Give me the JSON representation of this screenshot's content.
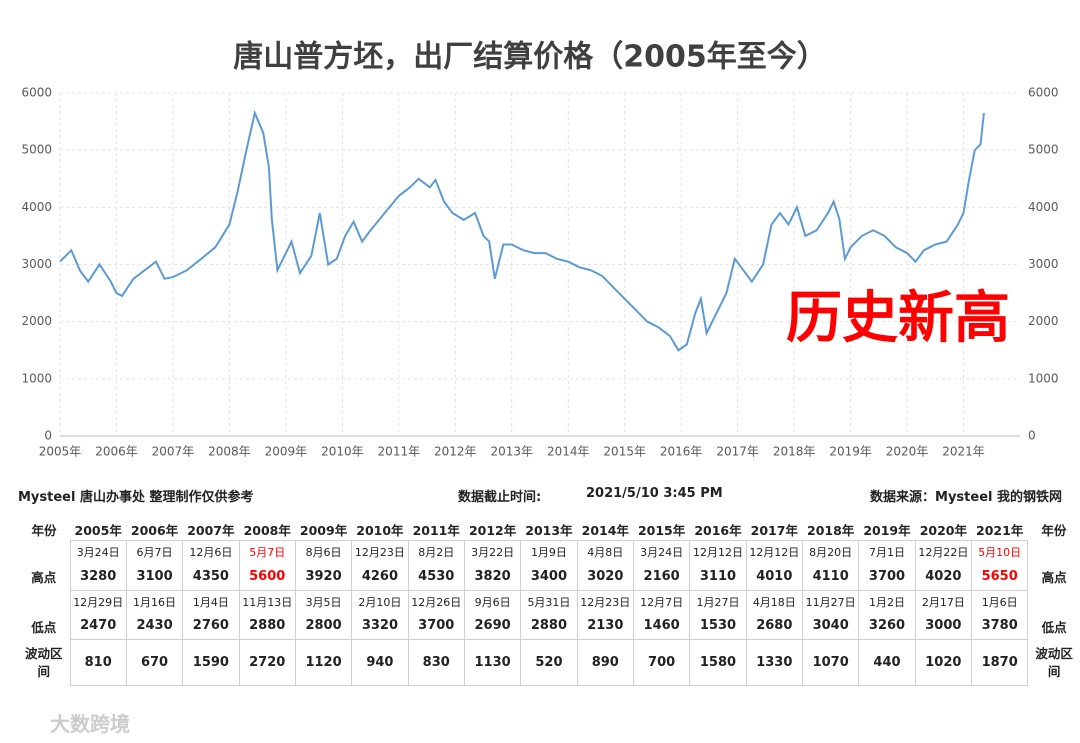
{
  "chart_data": {
    "type": "line",
    "title": "唐山普方坯，出厂结算价格（2005年至今）",
    "annotation": "历史新高",
    "annotation_color": "#ff0000",
    "color": "#5b9bd5",
    "grid": true,
    "x": [
      2005.0,
      2005.2,
      2005.35,
      2005.5,
      2005.7,
      2005.9,
      2006.0,
      2006.1,
      2006.3,
      2006.5,
      2006.7,
      2006.85,
      2007.0,
      2007.25,
      2007.5,
      2007.75,
      2008.0,
      2008.15,
      2008.3,
      2008.45,
      2008.6,
      2008.7,
      2008.75,
      2008.85,
      2009.0,
      2009.1,
      2009.25,
      2009.45,
      2009.6,
      2009.75,
      2009.9,
      2010.05,
      2010.2,
      2010.35,
      2010.5,
      2010.75,
      2011.0,
      2011.2,
      2011.35,
      2011.55,
      2011.65,
      2011.8,
      2011.95,
      2012.15,
      2012.35,
      2012.5,
      2012.6,
      2012.7,
      2012.85,
      2013.0,
      2013.2,
      2013.4,
      2013.6,
      2013.8,
      2014.0,
      2014.2,
      2014.4,
      2014.6,
      2014.8,
      2015.0,
      2015.2,
      2015.4,
      2015.6,
      2015.8,
      2015.95,
      2016.1,
      2016.25,
      2016.35,
      2016.45,
      2016.6,
      2016.8,
      2016.95,
      2017.1,
      2017.25,
      2017.45,
      2017.6,
      2017.75,
      2017.9,
      2018.05,
      2018.2,
      2018.4,
      2018.6,
      2018.7,
      2018.8,
      2018.9,
      2019.0,
      2019.2,
      2019.4,
      2019.6,
      2019.8,
      2020.0,
      2020.15,
      2020.3,
      2020.5,
      2020.7,
      2020.9,
      2021.0,
      2021.1,
      2021.2,
      2021.3,
      2021.36
    ],
    "values": [
      3050,
      3250,
      2900,
      2700,
      3000,
      2700,
      2500,
      2450,
      2750,
      2900,
      3050,
      2750,
      2780,
      2900,
      3100,
      3300,
      3700,
      4300,
      5000,
      5650,
      5300,
      4700,
      3800,
      2900,
      3200,
      3400,
      2850,
      3150,
      3900,
      3000,
      3100,
      3500,
      3750,
      3400,
      3600,
      3900,
      4200,
      4350,
      4500,
      4350,
      4480,
      4100,
      3900,
      3780,
      3900,
      3500,
      3400,
      2750,
      3350,
      3350,
      3250,
      3200,
      3200,
      3100,
      3050,
      2950,
      2900,
      2800,
      2600,
      2400,
      2200,
      2000,
      1900,
      1750,
      1500,
      1600,
      2150,
      2400,
      1800,
      2100,
      2500,
      3100,
      2900,
      2700,
      3000,
      3700,
      3900,
      3700,
      4000,
      3500,
      3600,
      3900,
      4100,
      3800,
      3100,
      3300,
      3500,
      3600,
      3500,
      3300,
      3200,
      3050,
      3250,
      3350,
      3400,
      3700,
      3900,
      4500,
      5000,
      5100,
      5650
    ],
    "xlim": [
      2005,
      2022
    ],
    "xticks": [
      {
        "value": 2005,
        "label": "2005年"
      },
      {
        "value": 2006,
        "label": "2006年"
      },
      {
        "value": 2007,
        "label": "2007年"
      },
      {
        "value": 2008,
        "label": "2008年"
      },
      {
        "value": 2009,
        "label": "2009年"
      },
      {
        "value": 2010,
        "label": "2010年"
      },
      {
        "value": 2011,
        "label": "2011年"
      },
      {
        "value": 2012,
        "label": "2012年"
      },
      {
        "value": 2013,
        "label": "2013年"
      },
      {
        "value": 2014,
        "label": "2014年"
      },
      {
        "value": 2015,
        "label": "2015年"
      },
      {
        "value": 2016,
        "label": "2016年"
      },
      {
        "value": 2017,
        "label": "2017年"
      },
      {
        "value": 2018,
        "label": "2018年"
      },
      {
        "value": 2019,
        "label": "2019年"
      },
      {
        "value": 2020,
        "label": "2020年"
      },
      {
        "value": 2021,
        "label": "2021年"
      }
    ],
    "ylim": [
      0,
      6000
    ],
    "yticks": [
      0,
      1000,
      2000,
      3000,
      4000,
      5000,
      6000
    ],
    "y2lim": [
      0,
      6000
    ],
    "y2ticks": [
      0,
      1000,
      2000,
      3000,
      4000,
      5000,
      6000
    ]
  },
  "info": {
    "maker": "Mysteel 唐山办事处 整理制作仅供参考",
    "cutoff_label": "数据截止时间:",
    "cutoff": "2021/5/10 3:45 PM",
    "source": "数据来源：Mysteel 我的钢铁网"
  },
  "table": {
    "year_label": "年份",
    "high_label": "高点",
    "low_label": "低点",
    "range_label": "波动区间",
    "years": [
      "2005年",
      "2006年",
      "2007年",
      "2008年",
      "2009年",
      "2010年",
      "2011年",
      "2012年",
      "2013年",
      "2014年",
      "2015年",
      "2016年",
      "2017年",
      "2018年",
      "2019年",
      "2020年",
      "2021年"
    ],
    "highs": [
      {
        "date": "3月24日",
        "value": 3280
      },
      {
        "date": "6月7日",
        "value": 3100
      },
      {
        "date": "12月6日",
        "value": 4350
      },
      {
        "date": "5月7日",
        "value": 5600,
        "color": "#ff0000"
      },
      {
        "date": "8月6日",
        "value": 3920
      },
      {
        "date": "12月23日",
        "value": 4260
      },
      {
        "date": "8月2日",
        "value": 4530
      },
      {
        "date": "3月22日",
        "value": 3820
      },
      {
        "date": "1月9日",
        "value": 3400
      },
      {
        "date": "4月8日",
        "value": 3020
      },
      {
        "date": "3月24日",
        "value": 2160
      },
      {
        "date": "12月12日",
        "value": 3110
      },
      {
        "date": "12月12日",
        "value": 4010
      },
      {
        "date": "8月20日",
        "value": 4110
      },
      {
        "date": "7月1日",
        "value": 3700
      },
      {
        "date": "12月22日",
        "value": 4020
      },
      {
        "date": "5月10日",
        "value": 5650,
        "color": "#ff0000"
      }
    ],
    "lows": [
      {
        "date": "12月29日",
        "value": 2470
      },
      {
        "date": "1月16日",
        "value": 2430
      },
      {
        "date": "1月4日",
        "value": 2760
      },
      {
        "date": "11月13日",
        "value": 2880
      },
      {
        "date": "3月5日",
        "value": 2800
      },
      {
        "date": "2月10日",
        "value": 3320
      },
      {
        "date": "12月26日",
        "value": 3700
      },
      {
        "date": "9月6日",
        "value": 2690
      },
      {
        "date": "5月31日",
        "value": 2880
      },
      {
        "date": "12月23日",
        "value": 2130
      },
      {
        "date": "12月7日",
        "value": 1460
      },
      {
        "date": "1月27日",
        "value": 1530
      },
      {
        "date": "4月18日",
        "value": 2680
      },
      {
        "date": "11月27日",
        "value": 3040
      },
      {
        "date": "1月2日",
        "value": 3260
      },
      {
        "date": "2月17日",
        "value": 3000
      },
      {
        "date": "1月6日",
        "value": 3780
      }
    ],
    "ranges": [
      810,
      670,
      1590,
      2720,
      1120,
      940,
      830,
      1130,
      520,
      890,
      700,
      1580,
      1330,
      1070,
      440,
      1020,
      1870
    ]
  },
  "watermark": "大数跨境"
}
